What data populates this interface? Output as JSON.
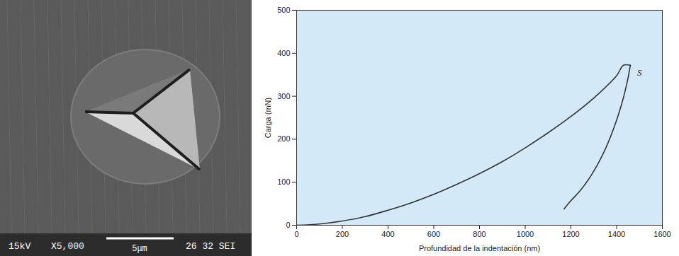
{
  "chart_data": {
    "type": "line",
    "xlabel": "Profundidad de la indentación (nm)",
    "ylabel": "Carga (mN)",
    "xlim": [
      0,
      1600
    ],
    "ylim": [
      0,
      500
    ],
    "xticks": [
      0,
      200,
      400,
      600,
      800,
      1000,
      1200,
      1400,
      1600
    ],
    "yticks": [
      0,
      100,
      200,
      300,
      400,
      500
    ],
    "grid": false,
    "color": "#333333",
    "series": [
      {
        "x": [
          0,
          100,
          200,
          300,
          400,
          500,
          600,
          700,
          800,
          900,
          1000,
          1100,
          1200,
          1300,
          1400,
          1430,
          1460
        ],
        "values": [
          0,
          3,
          10,
          20,
          35,
          52,
          72,
          95,
          120,
          148,
          180,
          215,
          253,
          296,
          348,
          372,
          372
        ]
      },
      {
        "x": [
          1460,
          1445,
          1420,
          1385,
          1340,
          1290,
          1240,
          1200,
          1170
        ],
        "values": [
          372,
          330,
          278,
          222,
          165,
          117,
          80,
          57,
          38
        ]
      }
    ],
    "annotations": [
      {
        "text": "S",
        "x": 1490,
        "y": 355
      }
    ]
  },
  "micrograph": {
    "labels": [
      "15kV",
      "X5,000",
      "26 32 SEI"
    ],
    "scale_bar": "5μm"
  }
}
